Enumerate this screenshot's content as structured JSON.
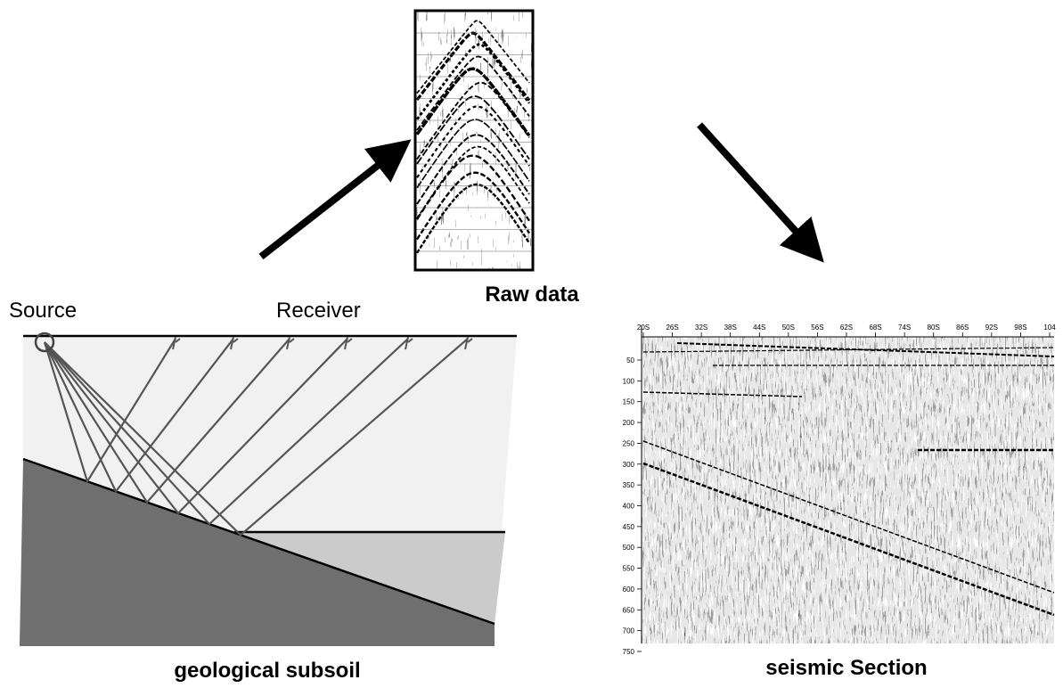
{
  "labels": {
    "source": "Source",
    "receiver": "Receiver",
    "raw_data": "Raw data",
    "geology": "geological subsoil",
    "section": "seismic Section"
  },
  "section_axis": {
    "top": [
      "20S",
      "26S",
      "32S",
      "38S",
      "44S",
      "50S",
      "56S",
      "62S",
      "68S",
      "74S",
      "80S",
      "86S",
      "92S",
      "98S",
      "104"
    ],
    "left": [
      50,
      100,
      150,
      200,
      250,
      300,
      350,
      400,
      450,
      500,
      550,
      600,
      650,
      700,
      750
    ]
  }
}
